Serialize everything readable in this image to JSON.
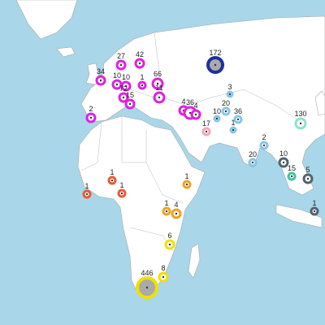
{
  "markers": [
    {
      "label": "172",
      "color": "#1f2fa0"
    },
    {
      "label": "27",
      "color": "#e020e0"
    },
    {
      "label": "42",
      "color": "#e020e0"
    },
    {
      "label": "34",
      "color": "#e020e0"
    },
    {
      "label": "10",
      "color": "#e020e0"
    },
    {
      "label": "10",
      "color": "#e020e0"
    },
    {
      "label": "1",
      "color": "#e020e0"
    },
    {
      "label": "72",
      "color": "#e020e0"
    },
    {
      "label": "15",
      "color": "#e020e0"
    },
    {
      "label": "66",
      "color": "#e020e0"
    },
    {
      "label": "11",
      "color": "#e020e0"
    },
    {
      "label": "2",
      "color": "#e020e0"
    },
    {
      "label": "4",
      "color": "#e020e0"
    },
    {
      "label": "36",
      "color": "#e020e0"
    },
    {
      "label": "4",
      "color": "#e020e0"
    },
    {
      "label": "17",
      "color": "#f4a6b4"
    },
    {
      "label": "3",
      "color": "#86c4ea"
    },
    {
      "label": "20",
      "color": "#86c4ea"
    },
    {
      "label": "10",
      "color": "#86c4ea"
    },
    {
      "label": "36",
      "color": "#86c4ea"
    },
    {
      "label": "1",
      "color": "#86c4ea"
    },
    {
      "label": "130",
      "color": "#8ae4d2"
    },
    {
      "label": "2",
      "color": "#86c4ea"
    },
    {
      "label": "20",
      "color": "#86c4ea"
    },
    {
      "label": "10",
      "color": "#4f6470"
    },
    {
      "label": "5",
      "color": "#4f6470"
    },
    {
      "label": "15",
      "color": "#3cc4a0"
    },
    {
      "label": "1",
      "color": "#4f6470"
    },
    {
      "label": "1",
      "color": "#e85a30"
    },
    {
      "label": "1",
      "color": "#e85a30"
    },
    {
      "label": "1",
      "color": "#e85a30"
    },
    {
      "label": "1",
      "color": "#f0a020"
    },
    {
      "label": "1",
      "color": "#f0a020"
    },
    {
      "label": "4",
      "color": "#f0a020"
    },
    {
      "label": "6",
      "color": "#f0e000"
    },
    {
      "label": "8",
      "color": "#f0e000"
    },
    {
      "label": "446",
      "color": "#f0e000"
    }
  ]
}
